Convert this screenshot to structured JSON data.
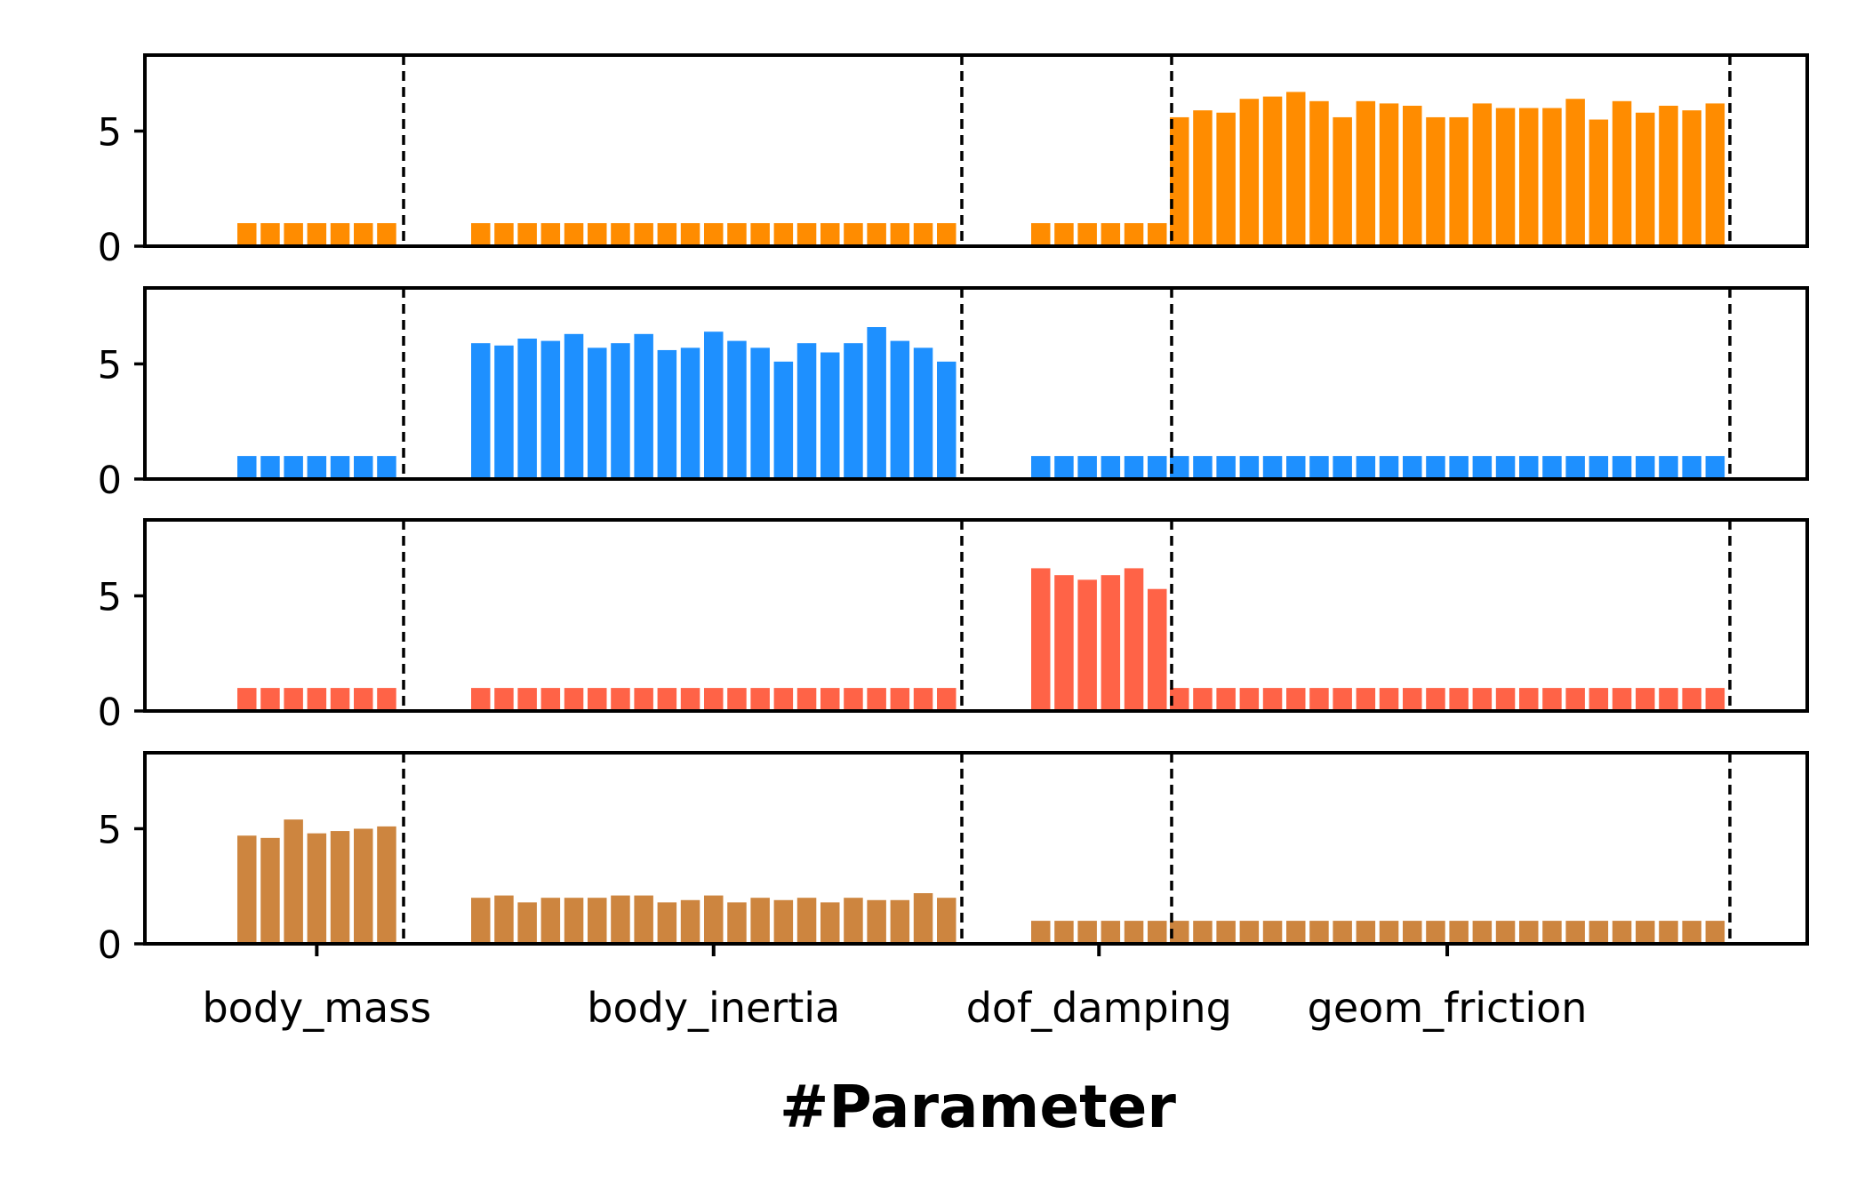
{
  "chart_data": {
    "type": "bar",
    "xlabel": "#Parameter",
    "ylim": [
      0,
      8.3
    ],
    "yticks": [
      0,
      5
    ],
    "groups": [
      {
        "name": "body_mass",
        "count": 7
      },
      {
        "name": "body_inertia",
        "count": 21
      },
      {
        "name": "dof_damping",
        "count": 6
      },
      {
        "name": "geom_friction",
        "count": 24
      }
    ],
    "panels": [
      {
        "color": "#FF8C00",
        "values": [
          1,
          1,
          1,
          1,
          1,
          1,
          1,
          1,
          1,
          1,
          1,
          1,
          1,
          1,
          1,
          1,
          1,
          1,
          1,
          1,
          1,
          1,
          1,
          1,
          1,
          1,
          1,
          1,
          1,
          1,
          1,
          1,
          1,
          1,
          5.6,
          5.9,
          5.8,
          6.4,
          6.5,
          6.7,
          6.3,
          5.6,
          6.3,
          6.2,
          6.1,
          5.6,
          5.6,
          6.2,
          6.0,
          6.0,
          6.0,
          6.4,
          5.5,
          6.3,
          5.8,
          6.1,
          5.9,
          6.2
        ]
      },
      {
        "color": "#1E90FF",
        "values": [
          1,
          1,
          1,
          1,
          1,
          1,
          1,
          5.9,
          5.8,
          6.1,
          6.0,
          6.3,
          5.7,
          5.9,
          6.3,
          5.6,
          5.7,
          6.4,
          6.0,
          5.7,
          5.1,
          5.9,
          5.5,
          5.9,
          6.6,
          6.0,
          5.7,
          5.1,
          1,
          1,
          1,
          1,
          1,
          1,
          1,
          1,
          1,
          1,
          1,
          1,
          1,
          1,
          1,
          1,
          1,
          1,
          1,
          1,
          1,
          1,
          1,
          1,
          1,
          1,
          1,
          1,
          1,
          1
        ]
      },
      {
        "color": "#FF6347",
        "values": [
          1,
          1,
          1,
          1,
          1,
          1,
          1,
          1,
          1,
          1,
          1,
          1,
          1,
          1,
          1,
          1,
          1,
          1,
          1,
          1,
          1,
          1,
          1,
          1,
          1,
          1,
          1,
          1,
          6.2,
          5.9,
          5.7,
          5.9,
          6.2,
          5.3,
          1,
          1,
          1,
          1,
          1,
          1,
          1,
          1,
          1,
          1,
          1,
          1,
          1,
          1,
          1,
          1,
          1,
          1,
          1,
          1,
          1,
          1,
          1,
          1
        ]
      },
      {
        "color": "#CD853F",
        "values": [
          4.7,
          4.6,
          5.4,
          4.8,
          4.9,
          5.0,
          5.1,
          2.0,
          2.1,
          1.8,
          2.0,
          2.0,
          2.0,
          2.1,
          2.1,
          1.8,
          1.9,
          2.1,
          1.8,
          2.0,
          1.9,
          2.0,
          1.8,
          2.0,
          1.9,
          1.9,
          2.2,
          2.0,
          1,
          1,
          1,
          1,
          1,
          1,
          1,
          1,
          1,
          1,
          1,
          1,
          1,
          1,
          1,
          1,
          1,
          1,
          1,
          1,
          1,
          1,
          1,
          1,
          1,
          1,
          1,
          1,
          1,
          1
        ]
      }
    ]
  }
}
